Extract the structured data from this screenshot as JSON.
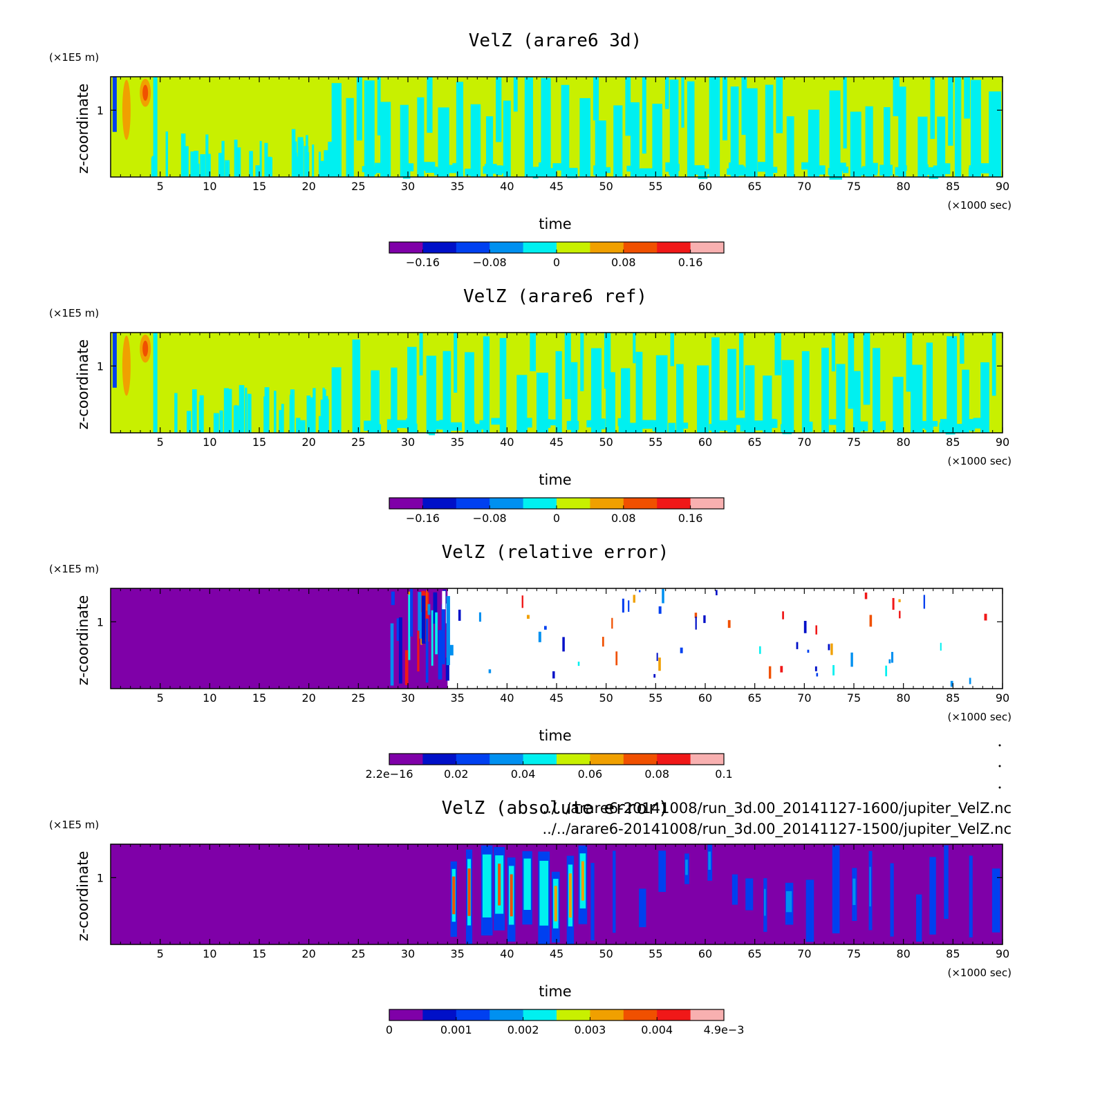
{
  "chart_data": [
    {
      "type": "heatmap",
      "panel": "velz-3d",
      "title": "VelZ (arare6 3d)",
      "xlabel": "time",
      "x_unit": "(×1000 sec)",
      "ylabel": "z-coordinate",
      "y_unit": "(×1E5 m)",
      "x_ticks": [
        "5",
        "10",
        "15",
        "20",
        "25",
        "30",
        "35",
        "40",
        "45",
        "50",
        "55",
        "60",
        "65",
        "70",
        "75",
        "80",
        "85",
        "90"
      ],
      "y_ticks": [
        "1"
      ],
      "xlim": [
        0,
        90
      ],
      "ylim": [
        0,
        1.5
      ],
      "colorbar": {
        "colors": [
          "#7f00a8",
          "#0010c8",
          "#0040f0",
          "#0090f0",
          "#00f0f0",
          "#c8f000",
          "#f0a000",
          "#f05000",
          "#f01818",
          "#f8b0b0"
        ],
        "tick_labels": [
          "−0.16",
          "−0.08",
          "0",
          "0.08",
          "0.16"
        ]
      },
      "description_values": {
        "background_level": 0,
        "min": -0.2,
        "max": 0.2
      }
    },
    {
      "type": "heatmap",
      "panel": "velz-ref",
      "title": "VelZ (arare6 ref)",
      "xlabel": "time",
      "x_unit": "(×1000 sec)",
      "ylabel": "z-coordinate",
      "y_unit": "(×1E5 m)",
      "x_ticks": [
        "5",
        "10",
        "15",
        "20",
        "25",
        "30",
        "35",
        "40",
        "45",
        "50",
        "55",
        "60",
        "65",
        "70",
        "75",
        "80",
        "85",
        "90"
      ],
      "y_ticks": [
        "1"
      ],
      "xlim": [
        0,
        90
      ],
      "ylim": [
        0,
        1.5
      ],
      "colorbar": {
        "colors": [
          "#7f00a8",
          "#0010c8",
          "#0040f0",
          "#0090f0",
          "#00f0f0",
          "#c8f000",
          "#f0a000",
          "#f05000",
          "#f01818",
          "#f8b0b0"
        ],
        "tick_labels": [
          "−0.16",
          "−0.08",
          "0",
          "0.08",
          "0.16"
        ]
      },
      "description_values": {
        "background_level": 0,
        "min": -0.2,
        "max": 0.2
      }
    },
    {
      "type": "heatmap",
      "panel": "velz-relative-error",
      "title": "VelZ (relative error)",
      "xlabel": "time",
      "x_unit": "(×1000 sec)",
      "ylabel": "z-coordinate",
      "y_unit": "(×1E5 m)",
      "x_ticks": [
        "5",
        "10",
        "15",
        "20",
        "25",
        "30",
        "35",
        "40",
        "45",
        "50",
        "55",
        "60",
        "65",
        "70",
        "75",
        "80",
        "85",
        "90"
      ],
      "y_ticks": [
        "1"
      ],
      "xlim": [
        0,
        90
      ],
      "ylim": [
        0,
        1.5
      ],
      "colorbar": {
        "colors": [
          "#7f00a8",
          "#0010c8",
          "#0040f0",
          "#0090f0",
          "#00f0f0",
          "#c8f000",
          "#f0a000",
          "#f05000",
          "#f01818",
          "#f8b0b0"
        ],
        "tick_labels": [
          "2.2e−16",
          "0.02",
          "0.04",
          "0.06",
          "0.08",
          "0.1"
        ]
      },
      "description_values": {
        "low_region_end_time": 34,
        "min": 2.2e-16,
        "max": 0.1
      }
    },
    {
      "type": "heatmap",
      "panel": "velz-absolute-error",
      "title": "VelZ (absolute error)",
      "xlabel": "time",
      "x_unit": "(×1000 sec)",
      "ylabel": "z-coordinate",
      "y_unit": "(×1E5 m)",
      "x_ticks": [
        "5",
        "10",
        "15",
        "20",
        "25",
        "30",
        "35",
        "40",
        "45",
        "50",
        "55",
        "60",
        "65",
        "70",
        "75",
        "80",
        "85",
        "90"
      ],
      "y_ticks": [
        "1"
      ],
      "xlim": [
        0,
        90
      ],
      "ylim": [
        0,
        1.5
      ],
      "colorbar": {
        "colors": [
          "#7f00a8",
          "#0010c8",
          "#0040f0",
          "#0090f0",
          "#00f0f0",
          "#c8f000",
          "#f0a000",
          "#f05000",
          "#f01818",
          "#f8b0b0"
        ],
        "tick_labels": [
          "0",
          "0.001",
          "0.002",
          "0.003",
          "0.004",
          "4.9e−3"
        ]
      },
      "description_values": {
        "error_onset_time": 34,
        "min": 0,
        "max": 0.0049
      }
    }
  ],
  "files": [
    "../../arare6-20141008/run_3d.00_20141127-1600/jupiter_VelZ.nc",
    "../../arare6-20141008/run_3d.00_20141127-1500/jupiter_VelZ.nc"
  ]
}
